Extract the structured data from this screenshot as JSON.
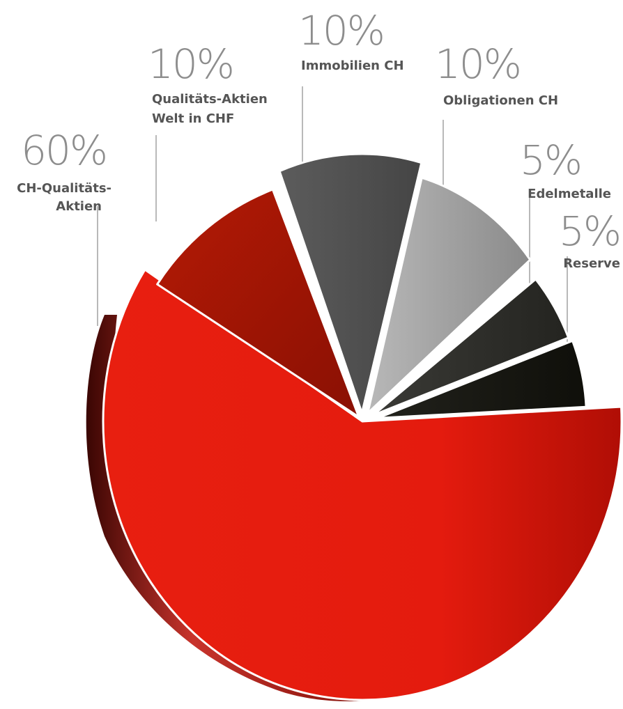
{
  "chart_data": {
    "type": "pie",
    "values": [
      60,
      10,
      10,
      10,
      5,
      5
    ],
    "labels": [
      {
        "percent": "60%",
        "lines": [
          "CH-Qualitäts-",
          "Aktien"
        ]
      },
      {
        "percent": "10%",
        "lines": [
          "Qualitäts-Aktien",
          "Welt in CHF"
        ]
      },
      {
        "percent": "10%",
        "lines": [
          "Immobilien CH"
        ]
      },
      {
        "percent": "10%",
        "lines": [
          "Obligationen CH"
        ]
      },
      {
        "percent": "5%",
        "lines": [
          "Edelmetalle"
        ]
      },
      {
        "percent": "5%",
        "lines": [
          "Reserve"
        ]
      }
    ],
    "colors": [
      "#e41d0f",
      "#9e1405",
      "#4e4e4e",
      "#a6a6a6",
      "#2c2c28",
      "#171712"
    ]
  }
}
